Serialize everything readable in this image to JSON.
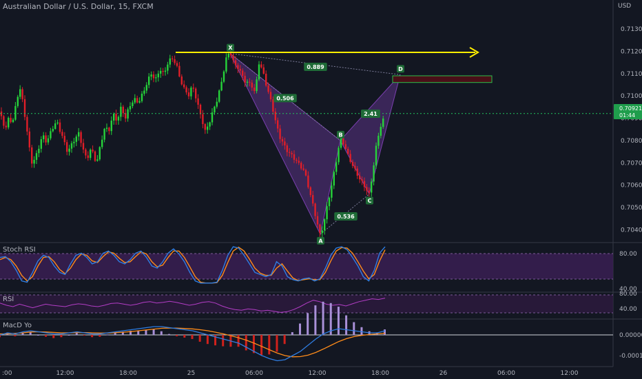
{
  "header": {
    "symbol_title": "Australian Dollar / U.S. Dollar, 15, FXCM",
    "currency": "USD"
  },
  "colors": {
    "background": "#131722",
    "bull": "#26d33a",
    "bear": "#e01e28",
    "pattern_fill": "#7b3fb0",
    "resistance_line": "#ffee00",
    "last_price_line": "#22c55e",
    "stoch_k": "#2f7de1",
    "stoch_d": "#ff8c1a",
    "rsi": "#b33dc6",
    "macd_hist_up": "#a990d8",
    "macd_hist_down": "#d0211c",
    "band_fill": "#3a1f52"
  },
  "chart_data": {
    "type": "candlestick",
    "symbol": "AUDUSD",
    "interval": "15",
    "feed": "FXCM",
    "y_range": [
      0.70355,
      0.71405
    ],
    "y_ticks": [
      "0.71300",
      "0.71200",
      "0.71100",
      "0.71000",
      "0.70900",
      "0.70800",
      "0.70700",
      "0.70600",
      "0.70500",
      "0.70400"
    ],
    "x_ticks": [
      ":00",
      "12:00",
      "18:00",
      "25",
      "06:00",
      "12:00",
      "18:00",
      "26",
      "06:00",
      "12:00"
    ],
    "last_price": "0.70921",
    "countdown": "01:44",
    "path": [
      [
        0,
        0.7093
      ],
      [
        4,
        0.7089
      ],
      [
        8,
        0.7084
      ],
      [
        13,
        0.709
      ],
      [
        18,
        0.7086
      ],
      [
        25,
        0.7099
      ],
      [
        30,
        0.7103
      ],
      [
        35,
        0.7094
      ],
      [
        42,
        0.7079
      ],
      [
        47,
        0.707
      ],
      [
        55,
        0.7076
      ],
      [
        62,
        0.7082
      ],
      [
        68,
        0.7078
      ],
      [
        75,
        0.7084
      ],
      [
        82,
        0.7088
      ],
      [
        90,
        0.7083
      ],
      [
        98,
        0.7076
      ],
      [
        106,
        0.708
      ],
      [
        114,
        0.7083
      ],
      [
        120,
        0.7076
      ],
      [
        126,
        0.707
      ],
      [
        132,
        0.7076
      ],
      [
        140,
        0.707
      ],
      [
        146,
        0.7079
      ],
      [
        152,
        0.7087
      ],
      [
        158,
        0.7085
      ],
      [
        164,
        0.7092
      ],
      [
        170,
        0.7088
      ],
      [
        176,
        0.7094
      ],
      [
        182,
        0.7089
      ],
      [
        188,
        0.7095
      ],
      [
        195,
        0.7099
      ],
      [
        201,
        0.7098
      ],
      [
        207,
        0.7102
      ],
      [
        213,
        0.7106
      ],
      [
        219,
        0.711
      ],
      [
        226,
        0.7106
      ],
      [
        232,
        0.7111
      ],
      [
        238,
        0.7109
      ],
      [
        244,
        0.7115
      ],
      [
        250,
        0.7118
      ],
      [
        256,
        0.7115
      ],
      [
        262,
        0.7108
      ],
      [
        268,
        0.7103
      ],
      [
        274,
        0.71
      ],
      [
        280,
        0.7104
      ],
      [
        286,
        0.7096
      ],
      [
        292,
        0.709
      ],
      [
        298,
        0.7084
      ],
      [
        304,
        0.7089
      ],
      [
        310,
        0.7095
      ],
      [
        316,
        0.71
      ],
      [
        322,
        0.7107
      ],
      [
        328,
        0.7116
      ],
      [
        334,
        0.7119
      ],
      [
        340,
        0.7113
      ],
      [
        346,
        0.7112
      ],
      [
        352,
        0.7109
      ],
      [
        358,
        0.7106
      ],
      [
        364,
        0.7107
      ],
      [
        370,
        0.7102
      ],
      [
        376,
        0.7115
      ],
      [
        382,
        0.711
      ],
      [
        388,
        0.7102
      ],
      [
        394,
        0.7096
      ],
      [
        400,
        0.7088
      ],
      [
        406,
        0.7082
      ],
      [
        412,
        0.7079
      ],
      [
        418,
        0.7076
      ],
      [
        424,
        0.7074
      ],
      [
        430,
        0.7071
      ],
      [
        436,
        0.7068
      ],
      [
        442,
        0.7065
      ],
      [
        448,
        0.7058
      ],
      [
        454,
        0.7051
      ],
      [
        460,
        0.7044
      ],
      [
        465,
        0.7038
      ],
      [
        470,
        0.7044
      ],
      [
        476,
        0.7053
      ],
      [
        482,
        0.7061
      ],
      [
        488,
        0.707
      ],
      [
        494,
        0.708
      ],
      [
        500,
        0.7077
      ],
      [
        506,
        0.7072
      ],
      [
        512,
        0.7069
      ],
      [
        518,
        0.7066
      ],
      [
        524,
        0.7063
      ],
      [
        530,
        0.706
      ],
      [
        536,
        0.7056
      ],
      [
        541,
        0.7065
      ],
      [
        546,
        0.7076
      ],
      [
        551,
        0.7084
      ],
      [
        556,
        0.7088
      ],
      [
        559,
        0.70921
      ]
    ],
    "harmonic_pattern": {
      "points": [
        {
          "label": "X",
          "x": 334,
          "y": 0.7119
        },
        {
          "label": "A",
          "x": 465,
          "y": 0.7038
        },
        {
          "label": "B",
          "x": 494,
          "y": 0.708
        },
        {
          "label": "C",
          "x": 536,
          "y": 0.7056
        },
        {
          "label": "D",
          "x": 581,
          "y": 0.71095
        }
      ],
      "ratios": [
        {
          "text": "0.506",
          "x": 414,
          "y": 0.7099
        },
        {
          "text": "0.889",
          "x": 458,
          "y": 0.7113
        },
        {
          "text": "0.536",
          "x": 502,
          "y": 0.7046
        },
        {
          "text": "2.41",
          "x": 538,
          "y": 0.7092
        }
      ],
      "target_zone": [
        0.7109,
        0.7106
      ],
      "resistance_level": 0.71195
    },
    "indicators": [
      {
        "name": "Stoch RSI",
        "band": [
          20,
          80
        ],
        "ticks": [
          "80.00",
          "40.00"
        ],
        "series": [
          {
            "name": "K",
            "values": [
              70,
              72,
              60,
              40,
              15,
              12,
              35,
              62,
              75,
              70,
              50,
              35,
              30,
              55,
              75,
              80,
              70,
              55,
              60,
              80,
              85,
              75,
              60,
              55,
              65,
              80,
              85,
              70,
              50,
              45,
              60,
              80,
              90,
              78,
              60,
              35,
              15,
              10,
              10,
              10,
              12,
              40,
              75,
              95,
              92,
              75,
              55,
              35,
              30,
              25,
              30,
              60,
              50,
              25,
              18,
              15,
              20,
              22,
              15,
              20,
              45,
              75,
              92,
              95,
              88,
              70,
              50,
              25,
              15,
              40,
              80,
              95
            ]
          },
          {
            "name": "D",
            "values": [
              65,
              70,
              65,
              50,
              28,
              15,
              25,
              50,
              70,
              72,
              60,
              42,
              32,
              45,
              65,
              78,
              75,
              62,
              58,
              72,
              83,
              80,
              68,
              58,
              60,
              72,
              83,
              78,
              60,
              48,
              52,
              70,
              85,
              85,
              70,
              48,
              25,
              12,
              10,
              10,
              11,
              28,
              58,
              85,
              94,
              85,
              66,
              45,
              33,
              28,
              28,
              45,
              55,
              38,
              22,
              16,
              18,
              20,
              18,
              18,
              35,
              62,
              85,
              93,
              92,
              80,
              60,
              38,
              20,
              30,
              62,
              88
            ]
          }
        ]
      },
      {
        "name": "RSI",
        "band": [
          30,
          70
        ],
        "ticks": [
          "80.00",
          "40.00"
        ],
        "series": [
          {
            "name": "RSI",
            "values": [
              58,
              52,
              48,
              55,
              50,
              45,
              50,
              55,
              52,
              50,
              48,
              53,
              56,
              54,
              50,
              48,
              52,
              57,
              58,
              55,
              52,
              55,
              60,
              62,
              58,
              60,
              63,
              60,
              56,
              52,
              55,
              60,
              62,
              58,
              50,
              44,
              40,
              38,
              42,
              40,
              36,
              38,
              35,
              32,
              34,
              40,
              48,
              58,
              66,
              62,
              55,
              52,
              54,
              50,
              56,
              62,
              66,
              70,
              68,
              72
            ]
          }
        ]
      },
      {
        "name": "MacD Yo",
        "ticks": [
          "0.00000",
          "-0.00010"
        ],
        "range": [
          -0.00014,
          6e-05
        ],
        "series": [
          {
            "name": "MACD",
            "values": [
              0.0,
              1e-05,
              5e-06,
              1.5e-05,
              2e-05,
              1.5e-05,
              1e-05,
              5e-06,
              5e-06,
              1e-05,
              1.5e-05,
              1e-05,
              5e-06,
              5e-06,
              1e-05,
              1.5e-05,
              2e-05,
              2.5e-05,
              3e-05,
              3.5e-05,
              4e-05,
              4e-05,
              3.5e-05,
              3e-05,
              2.5e-05,
              2e-05,
              1e-05,
              0.0,
              -1e-05,
              -2e-05,
              -3e-05,
              -4e-05,
              -6e-05,
              -8e-05,
              -0.0001,
              -0.000115,
              -0.000125,
              -0.00012,
              -0.0001,
              -8e-05,
              -5e-05,
              -2e-05,
              5e-06,
              2e-05,
              3e-05,
              2.5e-05,
              2e-05,
              1.5e-05,
              1e-05,
              1e-05,
              2e-05
            ]
          },
          {
            "name": "Signal",
            "values": [
              5e-06,
              5e-06,
              8e-06,
              1e-05,
              1.4e-05,
              1.5e-05,
              1.4e-05,
              1.2e-05,
              1e-05,
              1e-05,
              1.1e-05,
              1.1e-05,
              1e-05,
              9e-06,
              9e-06,
              1.1e-05,
              1.3e-05,
              1.6e-05,
              2e-05,
              2.4e-05,
              2.8e-05,
              3.2e-05,
              3.3e-05,
              3.3e-05,
              3.1e-05,
              2.9e-05,
              2.5e-05,
              2e-05,
              1.3e-05,
              5e-06,
              -4e-06,
              -1.4e-05,
              -2.6e-05,
              -4e-05,
              -5.6e-05,
              -7.2e-05,
              -8.8e-05,
              -0.0001,
              -0.000106,
              -0.000105,
              -9.8e-05,
              -8.5e-05,
              -6.8e-05,
              -5e-05,
              -3.2e-05,
              -1.8e-05,
              -8e-06,
              -2e-06,
              2e-06,
              5e-06,
              8e-06
            ]
          }
        ]
      }
    ]
  }
}
